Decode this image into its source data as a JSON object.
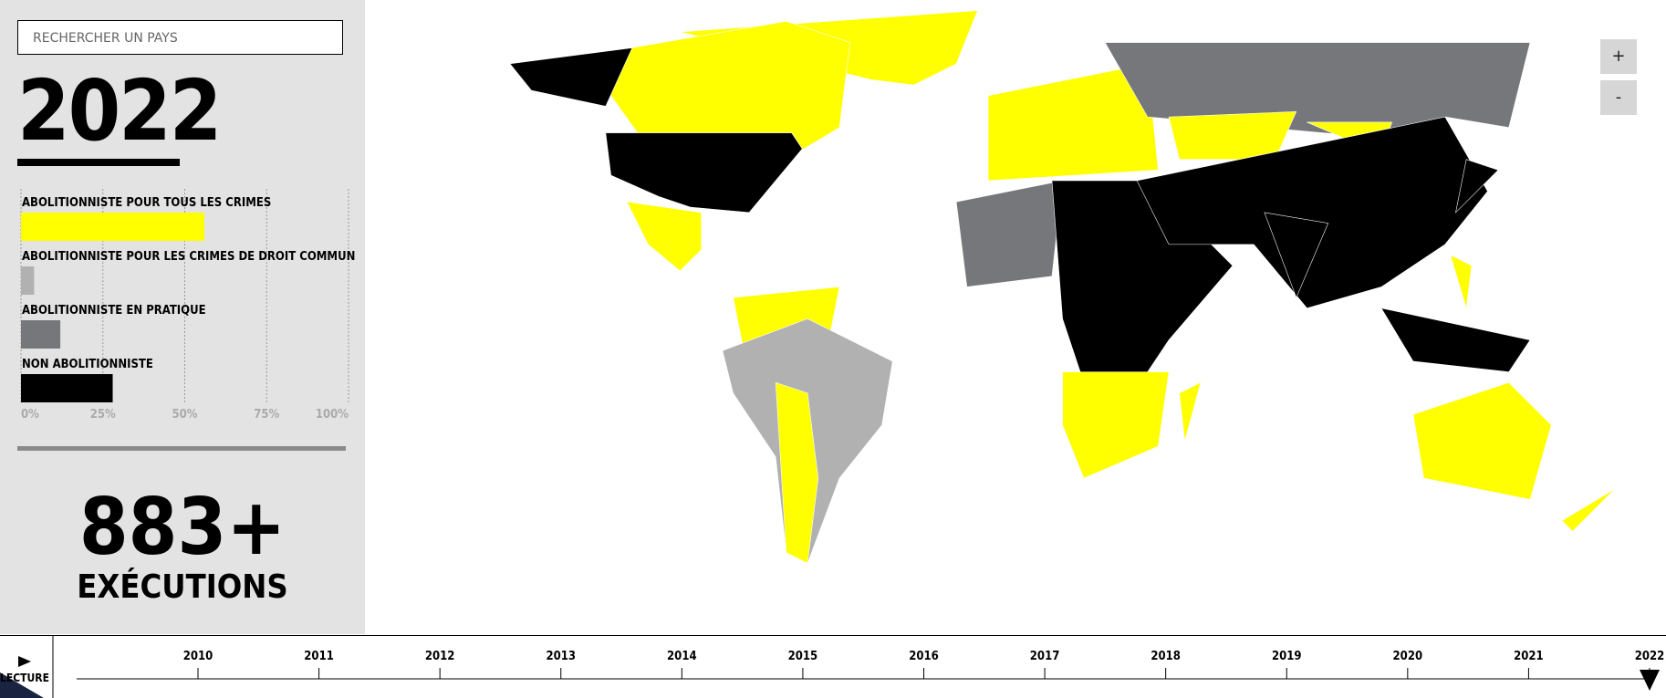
{
  "search_placeholder": "RECHERCHER UN PAYS",
  "year": "2022",
  "chart_data": {
    "type": "bar",
    "orientation": "horizontal",
    "categories": [
      "ABOLITIONNISTE POUR TOUS LES CRIMES",
      "ABOLITIONNISTE POUR LES CRIMES DE DROIT COMMUN",
      "ABOLITIONNISTE EN PRATIQUE",
      "NON ABOLITIONNISTE"
    ],
    "values": [
      56,
      4,
      12,
      28
    ],
    "colors": [
      "#ffff00",
      "#b1b1b1",
      "#76777a",
      "#000000"
    ],
    "xlim": [
      0,
      100
    ],
    "xticks": [
      {
        "value": 0,
        "label": "0%"
      },
      {
        "value": 25,
        "label": "25%"
      },
      {
        "value": 50,
        "label": "50%"
      },
      {
        "value": 75,
        "label": "75%"
      },
      {
        "value": 100,
        "label": "100%"
      }
    ],
    "grid": true
  },
  "executions": {
    "count": "883+",
    "label": "EXÉCUTIONS"
  },
  "zoom": {
    "in": "+",
    "out": "-"
  },
  "timeline": {
    "play": "LECTURE",
    "years": [
      "2010",
      "2011",
      "2012",
      "2013",
      "2014",
      "2015",
      "2016",
      "2017",
      "2018",
      "2019",
      "2020",
      "2021",
      "2022"
    ]
  }
}
